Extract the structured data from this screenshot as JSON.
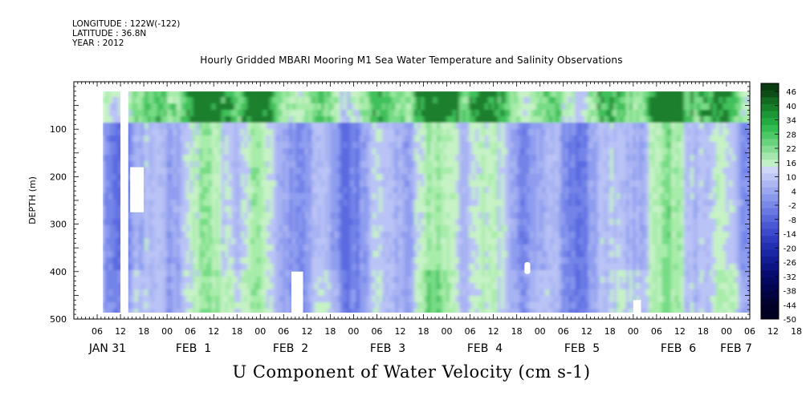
{
  "header": {
    "longitude": "LONGITUDE : 122W(-122)",
    "latitude": "LATITUDE : 36.8N",
    "year": "YEAR : 2012"
  },
  "title": "Hourly Gridded MBARI Mooring M1 Sea Water Temperature and Salinity Observations",
  "colorbar_title": "U Component of Water Velocity (cm s-1)",
  "chart_data": {
    "type": "heatmap",
    "title": "Hourly Gridded MBARI Mooring M1 Sea Water Temperature and Salinity Observations",
    "xlabel": "",
    "ylabel": "DEPTH (m)",
    "variable": "U Component of Water Velocity (cm s-1)",
    "y_ticks": [
      100,
      200,
      300,
      400,
      500
    ],
    "ylim": [
      500,
      0
    ],
    "y_inverted": true,
    "x_range_hours": [
      "2012-01-31 00:00",
      "2012-02-07 06:00"
    ],
    "x_hour_ticks": [
      "06",
      "12",
      "18",
      "00",
      "06",
      "12",
      "18",
      "00",
      "06",
      "12",
      "18",
      "00",
      "06",
      "12",
      "18",
      "00",
      "06",
      "12",
      "18",
      "00",
      "06",
      "12",
      "18",
      "00",
      "06",
      "12",
      "18",
      "00",
      "06",
      "12",
      "18",
      "00"
    ],
    "x_day_labels": [
      "JAN 31",
      "FEB  1",
      "FEB  2",
      "FEB  3",
      "FEB  4",
      "FEB  5",
      "FEB  6",
      "FEB 7"
    ],
    "colorbar_levels": [
      46,
      40,
      34,
      28,
      22,
      16,
      10,
      4,
      -2,
      -8,
      -14,
      -20,
      -26,
      -32,
      -38,
      -44,
      -50
    ],
    "colorbar_range": [
      -50,
      52
    ],
    "data_depth_range": [
      20,
      490
    ],
    "dominant_values": "mostly -2 to -14 (light blue) with patches of 4 to 16 (light green), strongest green near surface (20-60 m)",
    "missing_regions": [
      {
        "time_start": "2012-01-31 12:00",
        "time_end": "2012-01-31 14:00",
        "depth_start": 20,
        "depth_end": 490
      },
      {
        "time_start": "2012-01-31 14:30",
        "time_end": "2012-01-31 18:00",
        "depth_start": 180,
        "depth_end": 275
      },
      {
        "time_start": "2012-02-02 08:00",
        "time_end": "2012-02-02 11:00",
        "depth_start": 400,
        "depth_end": 490
      },
      {
        "time_start": "2012-02-04 20:00",
        "time_end": "2012-02-04 21:30",
        "depth_start": 380,
        "depth_end": 405
      },
      {
        "time_start": "2012-02-06 00:00",
        "time_end": "2012-02-06 02:00",
        "depth_start": 460,
        "depth_end": 490
      }
    ],
    "colors": {
      "deep_green": "#0e3f0e",
      "green": "#1fb040",
      "light_green": "#9ee8a2",
      "light_blue": "#a7b3f2",
      "blue": "#7080e8",
      "deep_blue": "#080878"
    }
  }
}
